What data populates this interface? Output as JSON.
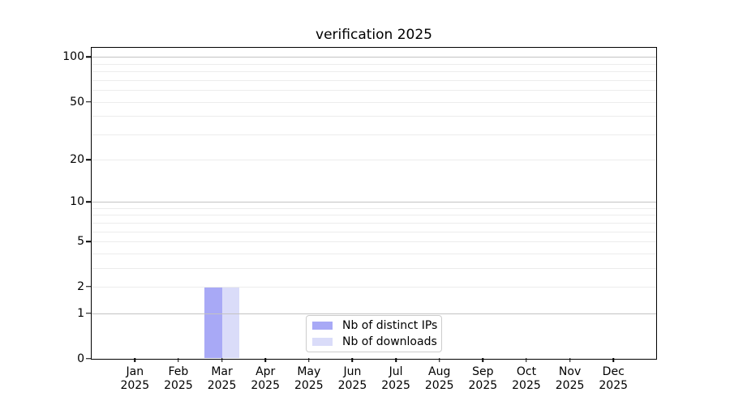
{
  "title": "verification 2025",
  "chart_data": {
    "type": "bar",
    "title": "verification 2025",
    "xlabel": "",
    "ylabel": "",
    "categories": [
      "Jan",
      "Feb",
      "Mar",
      "Apr",
      "May",
      "Jun",
      "Jul",
      "Aug",
      "Sep",
      "Oct",
      "Nov",
      "Dec"
    ],
    "category_year": "2025",
    "series": [
      {
        "name": "Nb of distinct IPs",
        "color": "#a8a9f6",
        "values": [
          0,
          0,
          2,
          0,
          0,
          0,
          0,
          0,
          0,
          0,
          0,
          0
        ]
      },
      {
        "name": "Nb of downloads",
        "color": "#dadcf9",
        "values": [
          0,
          0,
          2,
          0,
          0,
          0,
          0,
          0,
          0,
          0,
          0,
          0
        ]
      }
    ],
    "y_axis": {
      "scale": "log10(1+v)",
      "tick_values": [
        0,
        1,
        2,
        5,
        10,
        20,
        50,
        100
      ],
      "tick_labels": [
        "0",
        "1",
        "2",
        "5",
        "10",
        "20",
        "50",
        "100"
      ],
      "major_grid_values": [
        1,
        10,
        100
      ],
      "minor_grid_values": [
        2,
        3,
        4,
        5,
        6,
        7,
        8,
        9,
        20,
        30,
        40,
        50,
        60,
        70,
        80,
        90
      ],
      "ylim": [
        0,
        118
      ]
    },
    "legend": {
      "position": "lower center",
      "items": [
        "Nb of distinct IPs",
        "Nb of downloads"
      ]
    },
    "grid": "on (drawn above bars)",
    "colors": {
      "spine": "#000000",
      "major_grid": "#c3c3c3",
      "minor_grid": "#ececec",
      "text": "#000000",
      "legend_border": "#cccccc"
    }
  }
}
